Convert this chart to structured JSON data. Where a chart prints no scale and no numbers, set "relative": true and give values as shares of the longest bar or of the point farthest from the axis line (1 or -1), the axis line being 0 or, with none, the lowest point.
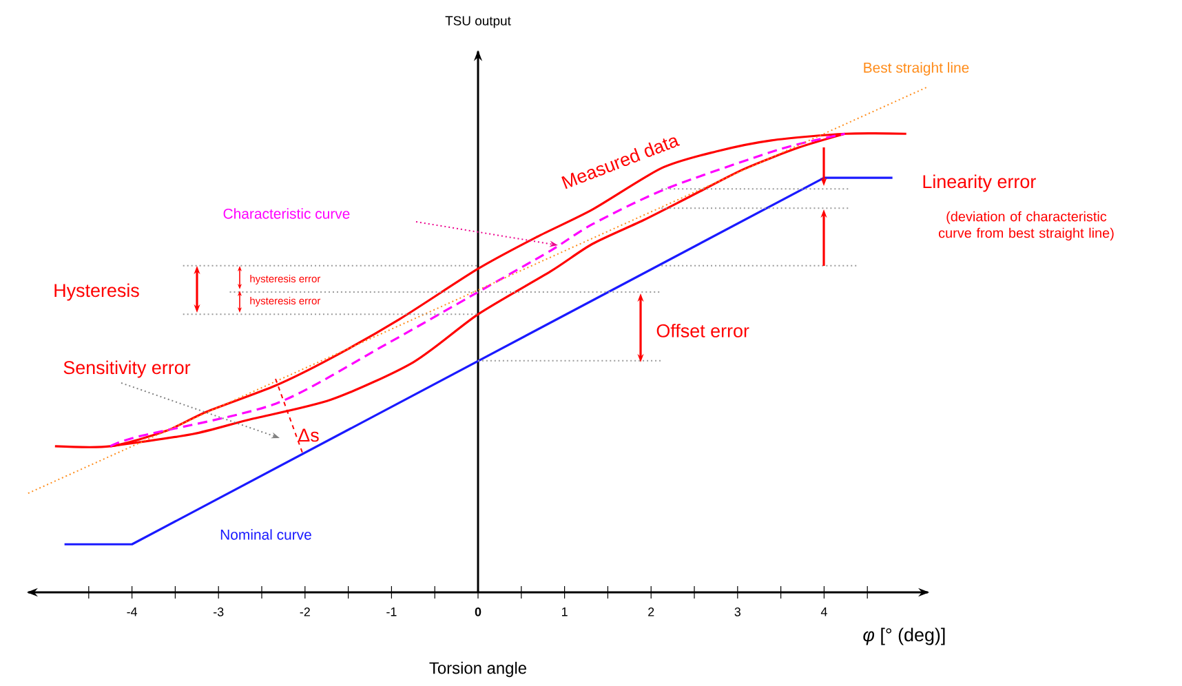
{
  "chart_data": {
    "type": "line",
    "relative": true,
    "xlabel": "Torsion angle",
    "ylabel": "TSU output",
    "xlim": [
      -5.2,
      5.2
    ],
    "xticks": [
      -4,
      -3,
      -2,
      -1,
      {
        "value": 0,
        "label": "**0**"
      },
      1,
      2,
      3,
      4,
      {
        "value": -4.5,
        "label": null
      },
      {
        "value": -3.5,
        "label": null
      },
      {
        "value": -2.5,
        "label": null
      },
      {
        "value": -1.5,
        "label": null
      },
      {
        "value": -0.5,
        "label": null
      },
      {
        "value": 0.5,
        "label": null
      },
      {
        "value": 1.5,
        "label": null
      },
      {
        "value": 2.5,
        "label": null
      },
      {
        "value": 3.5,
        "label": null
      },
      {
        "value": 4.5,
        "label": null
      }
    ],
    "series": [
      {
        "name": "Nominal curve",
        "color": "#1a1aff",
        "line_style": "solid",
        "x": [
          -4.78,
          -4,
          4,
          4.79
        ],
        "values": [
          0.095,
          0.095,
          0.82,
          0.82
        ]
      },
      {
        "name": "Measured data",
        "color": "#ff0000",
        "line_style": "solid",
        "x": [
          -4.89,
          -4.25,
          -3.61,
          -3.14,
          -2.34,
          -1.7,
          -0.91,
          0,
          0.68,
          1.32,
          2.12,
          2.75,
          3.39,
          4.24,
          4.95
        ],
        "values": [
          0.289,
          0.289,
          0.319,
          0.357,
          0.409,
          0.463,
          0.54,
          0.64,
          0.703,
          0.757,
          0.839,
          0.872,
          0.894,
          0.907,
          0.907
        ]
      },
      {
        "color": "#ff0000",
        "line_style": "solid",
        "x": [
          -4.25,
          -3.3,
          -2.66,
          -1.7,
          -0.75,
          0,
          0.84,
          1.32,
          1.91,
          2.44,
          3.07,
          3.71,
          4.24
        ],
        "values": [
          0.289,
          0.313,
          0.341,
          0.381,
          0.455,
          0.55,
          0.635,
          0.689,
          0.736,
          0.782,
          0.837,
          0.88,
          0.907
        ]
      },
      {
        "name": "Characteristic curve",
        "color": "#ff00ff",
        "line_style": "dashed",
        "x": [
          -4.25,
          -3.93,
          -2.34,
          -1.07,
          0,
          0.84,
          1.32,
          2.17,
          3.5,
          4.24
        ],
        "values": [
          0.289,
          0.308,
          0.373,
          0.49,
          0.594,
          0.676,
          0.728,
          0.798,
          0.877,
          0.907
        ]
      },
      {
        "name": "Best straight line",
        "color": "#ff8c1a",
        "line_style": "dotted",
        "x": [
          -5.2,
          5.2
        ],
        "values": [
          0.196,
          1.0
        ]
      },
      {
        "color": "#999999",
        "line_style": "dotted",
        "x": [
          -3.41,
          0
        ],
        "values": [
          0.646,
          0.646
        ]
      },
      {
        "color": "#999999",
        "line_style": "dotted",
        "x": [
          -2.87,
          2.12
        ],
        "values": [
          0.594,
          0.594
        ]
      },
      {
        "color": "#999999",
        "line_style": "dotted",
        "x": [
          -3.41,
          0
        ],
        "values": [
          0.55,
          0.55
        ]
      },
      {
        "color": "#999999",
        "line_style": "dotted",
        "x": [
          0,
          2.12
        ],
        "values": [
          0.458,
          0.458
        ]
      },
      {
        "color": "#999999",
        "line_style": "dotted",
        "x": [
          2.12,
          4.3
        ],
        "values": [
          0.798,
          0.798
        ]
      },
      {
        "color": "#999999",
        "line_style": "dotted",
        "x": [
          2.12,
          4.3
        ],
        "values": [
          0.76,
          0.76
        ]
      },
      {
        "color": "#999999",
        "line_style": "dotted",
        "x": [
          2.12,
          4.39
        ],
        "values": [
          0.646,
          0.646
        ]
      }
    ],
    "annotations": [
      "Hysteresis",
      "hysteresis error",
      "hysteresis error",
      "Sensitivity error",
      "Δs",
      "Offset error",
      "Linearity error",
      "(deviation of characteristic curve from best straight line)",
      "*φ* [° (deg)]"
    ]
  }
}
